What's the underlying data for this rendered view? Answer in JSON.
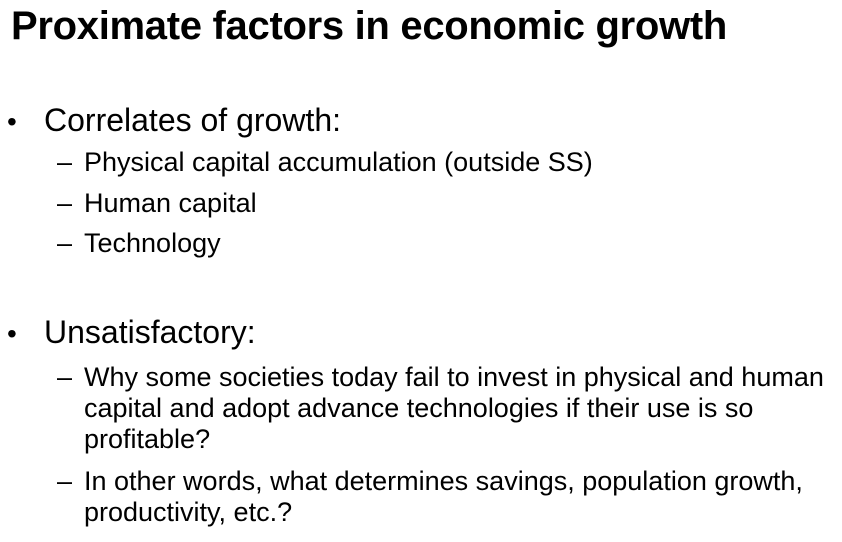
{
  "slide": {
    "title": "Proximate factors in economic growth",
    "bullet_glyph": "•",
    "dash_glyph": "–",
    "sections": [
      {
        "heading": "Correlates of growth:",
        "items": [
          "Physical capital accumulation (outside SS)",
          "Human capital",
          "Technology"
        ]
      },
      {
        "heading": "Unsatisfactory:",
        "items": [
          "Why some societies today fail to invest in physical and human capital and adopt advance technologies if their use is so profitable?",
          "In other words, what determines savings, population growth, productivity, etc.?"
        ]
      }
    ]
  }
}
